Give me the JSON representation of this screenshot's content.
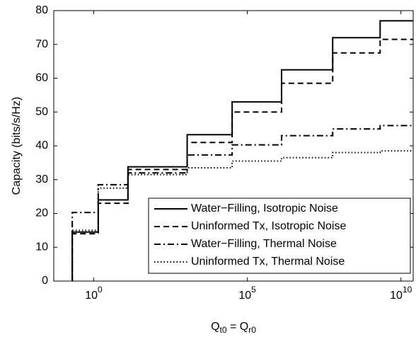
{
  "chart_data": {
    "type": "line",
    "drawstyle": "steps-post",
    "xscale": "log",
    "ylabel": "Capacity (bits/s/Hz)",
    "xlabel": [
      "Q",
      "t0",
      " = Q",
      "r0"
    ],
    "x": [
      0.2,
      1.4,
      13,
      1100,
      32000,
      1300000,
      60000000,
      2100000000,
      25000000000
    ],
    "series": [
      {
        "name": "Water−Filling, Isotropic Noise",
        "color": "#000000",
        "dash": "solid",
        "values": [
          14.5,
          24,
          33.8,
          43.3,
          53,
          62.5,
          72,
          77,
          77
        ]
      },
      {
        "name": "Uninformed Tx, Isotropic Noise",
        "color": "#000000",
        "dash": "dashed",
        "values": [
          14,
          23,
          33,
          41,
          50,
          58.5,
          67.5,
          71.5,
          71.5
        ]
      },
      {
        "name": "Water−Filling, Thermal Noise",
        "color": "#000000",
        "dash": "dashdot",
        "values": [
          20.3,
          28.5,
          32,
          37.3,
          40.3,
          43,
          45,
          46,
          46
        ]
      },
      {
        "name": "Uninformed Tx, Thermal Noise",
        "color": "#000000",
        "dash": "dotted",
        "values": [
          15,
          27.5,
          31.5,
          33.5,
          35.5,
          36.5,
          38,
          38.5,
          38.5
        ]
      }
    ],
    "xlim": [
      0.05,
      25000000000
    ],
    "ylim": [
      0,
      80
    ],
    "xticks": [
      {
        "value": 1,
        "label": "10",
        "exponent": "0"
      },
      {
        "value": 100000,
        "label": "10",
        "exponent": "5"
      },
      {
        "value": 10000000000,
        "label": "10",
        "exponent": "10"
      }
    ],
    "yticks": [
      0,
      10,
      20,
      30,
      40,
      50,
      60,
      70,
      80
    ],
    "legend": "lower right",
    "grid": false
  }
}
